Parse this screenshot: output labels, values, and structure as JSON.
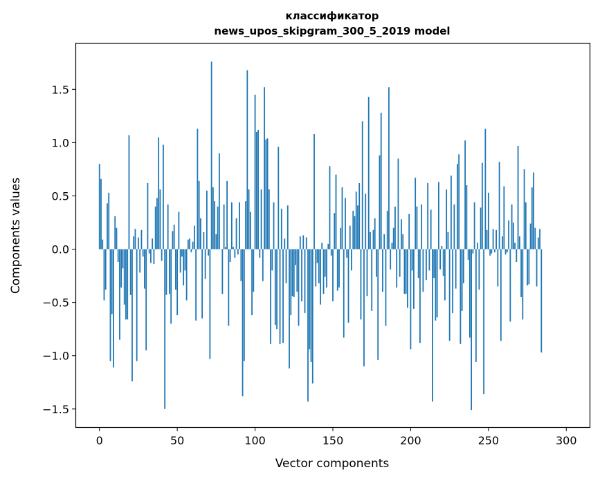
{
  "chart_data": {
    "type": "bar",
    "title": "классификатор",
    "subtitle": "news_upos_skipgram_300_5_2019 model",
    "xlabel": "Vector components",
    "ylabel": "Components values",
    "xlim": [
      -15,
      315
    ],
    "ylim": [
      -1.67,
      1.93
    ],
    "xticks": [
      0,
      50,
      100,
      150,
      200,
      250,
      300
    ],
    "xtick_labels": [
      "0",
      "50",
      "100",
      "150",
      "200",
      "250",
      "300"
    ],
    "yticks": [
      -1.5,
      -1.0,
      -0.5,
      0.0,
      0.5,
      1.0,
      1.5
    ],
    "ytick_labels": [
      "−1.5",
      "−1.0",
      "−0.5",
      "0.0",
      "0.5",
      "1.0",
      "1.5"
    ],
    "grid": false,
    "bar_color": "#1f77b4",
    "values": [
      0.8,
      0.66,
      0.09,
      -0.48,
      -0.38,
      0.43,
      0.53,
      -1.05,
      -0.61,
      -1.11,
      0.31,
      0.2,
      -0.12,
      -0.85,
      -0.36,
      -0.18,
      -0.52,
      -0.66,
      -0.66,
      1.07,
      -0.43,
      -1.24,
      0.12,
      0.19,
      -1.05,
      0.11,
      -0.22,
      0.18,
      -0.07,
      -0.37,
      -0.95,
      0.62,
      -0.04,
      -0.13,
      0.1,
      -0.14,
      0.4,
      0.48,
      1.05,
      0.56,
      -0.11,
      0.98,
      -1.5,
      -0.43,
      0.42,
      -0.42,
      -0.7,
      0.17,
      0.23,
      -0.38,
      -0.62,
      0.35,
      -0.22,
      -0.07,
      -0.34,
      -0.2,
      -0.48,
      0.09,
      0.1,
      -0.03,
      0.07,
      0.22,
      -0.67,
      1.13,
      0.64,
      0.29,
      -0.65,
      0.16,
      -0.28,
      0.55,
      -0.06,
      -1.03,
      1.76,
      0.58,
      0.45,
      0.14,
      0.4,
      0.9,
      0.0,
      -0.42,
      0.42,
      0.02,
      0.64,
      -0.72,
      -0.12,
      0.44,
      0.02,
      -0.08,
      0.29,
      -0.05,
      0.44,
      -0.3,
      -1.38,
      -1.05,
      0.45,
      1.68,
      0.56,
      0.35,
      -0.62,
      -0.4,
      1.45,
      1.1,
      1.12,
      -0.08,
      0.56,
      -0.3,
      1.52,
      1.03,
      1.04,
      0.56,
      -0.89,
      -0.2,
      0.44,
      -0.71,
      -0.75,
      0.96,
      -0.89,
      0.38,
      -0.88,
      0.1,
      -0.32,
      0.41,
      -1.12,
      -0.62,
      -0.44,
      -0.45,
      -0.15,
      -0.4,
      -0.72,
      0.12,
      -0.49,
      0.13,
      -0.6,
      0.11,
      -1.43,
      -0.94,
      -1.06,
      -1.26,
      1.08,
      -0.35,
      -0.13,
      -0.32,
      -0.52,
      0.06,
      -0.42,
      -0.26,
      -0.36,
      0.05,
      0.78,
      -0.06,
      -0.49,
      0.34,
      0.7,
      -0.39,
      -0.36,
      0.2,
      0.58,
      -0.83,
      0.48,
      -0.08,
      -0.69,
      0.22,
      -0.2,
      0.36,
      0.31,
      0.54,
      0.41,
      0.62,
      -0.66,
      1.2,
      -1.1,
      0.52,
      -0.44,
      1.43,
      0.16,
      -0.58,
      0.18,
      0.29,
      -0.26,
      -1.04,
      0.88,
      1.28,
      -0.4,
      0.14,
      -0.72,
      0.36,
      1.52,
      -0.19,
      0.06,
      0.2,
      0.4,
      -0.36,
      0.85,
      -0.26,
      0.28,
      0.14,
      -0.42,
      -0.42,
      -0.55,
      0.33,
      -0.94,
      -0.2,
      -0.56,
      0.67,
      0.4,
      -0.27,
      -0.88,
      0.42,
      -0.4,
      0.0,
      -0.29,
      0.62,
      -0.2,
      0.37,
      -1.43,
      -0.27,
      -0.67,
      -0.64,
      0.63,
      -0.19,
      0.03,
      -0.25,
      -0.48,
      0.56,
      0.16,
      -0.86,
      0.69,
      -0.6,
      0.42,
      -0.37,
      0.8,
      0.89,
      -0.89,
      -0.58,
      -0.32,
      1.02,
      0.6,
      -0.1,
      -0.83,
      -1.51,
      -0.04,
      0.44,
      -1.06,
      0.06,
      -0.38,
      0.39,
      0.81,
      -1.36,
      1.13,
      0.18,
      0.53,
      -0.06,
      -0.04,
      0.19,
      -0.03,
      0.18,
      -0.35,
      0.82,
      -0.86,
      0.12,
      0.59,
      -0.05,
      -0.03,
      0.27,
      -0.68,
      0.42,
      0.25,
      0.06,
      -0.12,
      0.97,
      0.12,
      -0.45,
      -0.66,
      0.75,
      0.44,
      -0.34,
      -0.33,
      0.24,
      0.58,
      0.72,
      0.2,
      -0.35,
      0.11,
      0.19,
      -0.97
    ]
  }
}
